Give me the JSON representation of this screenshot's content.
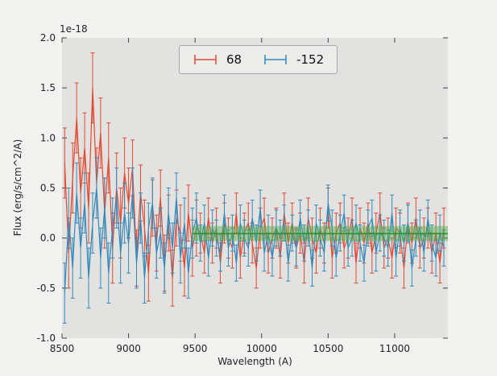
{
  "figure": {
    "offset_text": "1e-18",
    "xlabel": "Wavelength (A)",
    "ylabel": "Flux (erg/s/cm^2/A)"
  },
  "legend": {
    "entries": [
      {
        "label": "68",
        "color": "#E24A33"
      },
      {
        "label": "-152",
        "color": "#348ABD"
      }
    ]
  },
  "colors": {
    "axes_bg": "#e2e2e0",
    "figure_bg": "#f2f2f0",
    "tick": "#444444",
    "tick_label": "#222222"
  },
  "chart_data": {
    "type": "line",
    "style": "errorbar",
    "title": "",
    "xlabel": "Wavelength (A)",
    "ylabel": "Flux (erg/s/cm^2/A)",
    "y_scale_factor": "1e-18",
    "xlim": [
      8500,
      11400
    ],
    "ylim": [
      -1.0,
      2.0
    ],
    "x_ticks": [
      8500,
      9000,
      9500,
      10000,
      10500,
      11000
    ],
    "y_ticks": [
      -1.0,
      -0.5,
      0.0,
      0.5,
      1.0,
      1.5,
      2.0
    ],
    "grid": false,
    "legend_position": "upper center",
    "x": [
      8520,
      8550,
      8580,
      8610,
      8640,
      8670,
      8700,
      8730,
      8760,
      8790,
      8820,
      8850,
      8880,
      8910,
      8940,
      8970,
      9000,
      9030,
      9060,
      9090,
      9120,
      9150,
      9180,
      9210,
      9240,
      9270,
      9300,
      9330,
      9360,
      9390,
      9420,
      9450,
      9480,
      9510,
      9540,
      9570,
      9600,
      9630,
      9660,
      9690,
      9720,
      9750,
      9780,
      9810,
      9840,
      9870,
      9900,
      9930,
      9960,
      9990,
      10020,
      10050,
      10080,
      10110,
      10140,
      10170,
      10200,
      10230,
      10260,
      10290,
      10320,
      10350,
      10380,
      10410,
      10440,
      10470,
      10500,
      10530,
      10560,
      10590,
      10620,
      10650,
      10680,
      10710,
      10740,
      10770,
      10800,
      10830,
      10860,
      10890,
      10920,
      10950,
      10980,
      11010,
      11040,
      11070,
      11100,
      11130,
      11160,
      11190,
      11220,
      11250,
      11280,
      11310,
      11340,
      11370
    ],
    "series": [
      {
        "name": "68",
        "color": "#E24A33",
        "values": [
          0.75,
          -0.15,
          0.6,
          1.2,
          0.45,
          0.9,
          0.3,
          1.5,
          0.55,
          1.05,
          0.25,
          0.8,
          -0.1,
          0.5,
          0.15,
          0.65,
          0.35,
          0.7,
          -0.2,
          0.45,
          0.1,
          -0.35,
          0.3,
          -0.05,
          0.4,
          -0.25,
          0.15,
          -0.4,
          0.2,
          0.05,
          -0.3,
          0.25,
          -0.1,
          0.1,
          0.05,
          -0.15,
          0.2,
          -0.05,
          0.1,
          -0.25,
          0.15,
          0.0,
          -0.1,
          0.25,
          -0.2,
          0.05,
          0.15,
          -0.05,
          -0.3,
          0.1,
          0.2,
          -0.15,
          0.0,
          0.1,
          -0.2,
          0.25,
          -0.05,
          0.15,
          -0.1,
          0.05,
          -0.25,
          0.2,
          0.0,
          -0.15,
          0.1,
          -0.05,
          0.3,
          -0.2,
          0.05,
          0.15,
          -0.1,
          0.0,
          0.2,
          -0.25,
          0.1,
          -0.05,
          0.15,
          -0.15,
          0.05,
          0.25,
          -0.1,
          0.0,
          -0.2,
          0.1,
          0.05,
          -0.3,
          0.15,
          -0.05,
          0.2,
          -0.1,
          0.0,
          0.1,
          -0.15,
          0.05,
          -0.25,
          0.1
        ],
        "yerr": [
          0.35,
          0.35,
          0.35,
          0.35,
          0.35,
          0.35,
          0.35,
          0.35,
          0.35,
          0.35,
          0.35,
          0.35,
          0.35,
          0.35,
          0.35,
          0.35,
          0.35,
          0.28,
          0.28,
          0.28,
          0.28,
          0.28,
          0.28,
          0.28,
          0.28,
          0.28,
          0.28,
          0.28,
          0.28,
          0.28,
          0.28,
          0.28,
          0.28,
          0.28,
          0.2,
          0.2,
          0.2,
          0.2,
          0.2,
          0.2,
          0.2,
          0.2,
          0.2,
          0.2,
          0.2,
          0.2,
          0.2,
          0.2,
          0.2,
          0.2,
          0.2,
          0.2,
          0.2,
          0.2,
          0.2,
          0.2,
          0.2,
          0.2,
          0.2,
          0.2,
          0.2,
          0.2,
          0.2,
          0.2,
          0.2,
          0.2,
          0.2,
          0.2,
          0.2,
          0.2,
          0.2,
          0.2,
          0.2,
          0.2,
          0.2,
          0.2,
          0.2,
          0.2,
          0.2,
          0.2,
          0.2,
          0.2,
          0.2,
          0.2,
          0.2,
          0.2,
          0.2,
          0.2,
          0.2,
          0.2,
          0.2,
          0.2,
          0.2,
          0.2,
          0.2,
          0.2
        ]
      },
      {
        "name": "-152",
        "color": "#348ABD",
        "values": [
          -0.55,
          0.2,
          -0.3,
          0.45,
          -0.1,
          0.35,
          -0.4,
          0.15,
          0.5,
          -0.2,
          0.3,
          -0.35,
          0.1,
          0.4,
          -0.15,
          0.25,
          -0.05,
          0.45,
          -0.25,
          0.2,
          -0.4,
          0.1,
          0.35,
          -0.15,
          0.05,
          -0.3,
          0.25,
          -0.1,
          0.4,
          -0.2,
          0.15,
          -0.35,
          0.05,
          0.2,
          -0.05,
          0.15,
          -0.2,
          0.1,
          0.0,
          -0.15,
          0.25,
          -0.1,
          0.05,
          -0.25,
          0.15,
          0.0,
          -0.1,
          0.2,
          -0.05,
          0.3,
          -0.15,
          0.05,
          -0.2,
          0.1,
          0.0,
          0.15,
          -0.25,
          0.05,
          -0.1,
          0.2,
          -0.05,
          0.1,
          -0.3,
          0.15,
          0.0,
          -0.15,
          0.35,
          0.1,
          -0.2,
          0.05,
          0.25,
          -0.1,
          0.0,
          0.15,
          -0.05,
          -0.25,
          0.1,
          0.2,
          -0.15,
          0.05,
          0.0,
          -0.1,
          0.25,
          -0.2,
          0.1,
          -0.05,
          0.15,
          -0.3,
          0.0,
          0.1,
          -0.15,
          0.2,
          -0.05,
          -0.2,
          0.05,
          -0.1
        ],
        "yerr": [
          0.3,
          0.3,
          0.3,
          0.3,
          0.3,
          0.3,
          0.3,
          0.3,
          0.3,
          0.3,
          0.3,
          0.3,
          0.3,
          0.3,
          0.3,
          0.3,
          0.3,
          0.25,
          0.25,
          0.25,
          0.25,
          0.25,
          0.25,
          0.25,
          0.25,
          0.25,
          0.25,
          0.25,
          0.25,
          0.25,
          0.25,
          0.25,
          0.25,
          0.25,
          0.18,
          0.18,
          0.18,
          0.18,
          0.18,
          0.18,
          0.18,
          0.18,
          0.18,
          0.18,
          0.18,
          0.18,
          0.18,
          0.18,
          0.18,
          0.18,
          0.18,
          0.18,
          0.18,
          0.18,
          0.18,
          0.18,
          0.18,
          0.18,
          0.18,
          0.18,
          0.18,
          0.18,
          0.18,
          0.18,
          0.18,
          0.18,
          0.18,
          0.18,
          0.18,
          0.18,
          0.18,
          0.18,
          0.18,
          0.18,
          0.18,
          0.18,
          0.18,
          0.18,
          0.18,
          0.18,
          0.18,
          0.18,
          0.18,
          0.18,
          0.18,
          0.18,
          0.18,
          0.18,
          0.18,
          0.18,
          0.18,
          0.18,
          0.18,
          0.18,
          0.18,
          0.18
        ]
      }
    ],
    "band": {
      "x_start": 9480,
      "x_end": 11400,
      "y_low": -0.03,
      "y_high": 0.12,
      "center": 0.045,
      "color": "#4daf4a",
      "edge_color": "#2e8b2e",
      "opacity": 0.45
    }
  }
}
